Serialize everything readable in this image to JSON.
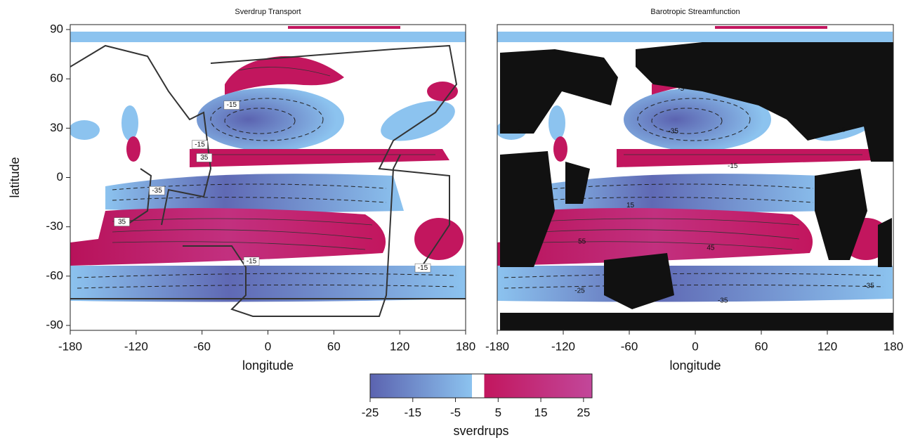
{
  "chart_data": [
    {
      "type": "contour",
      "title": "Sverdrup Transport",
      "xlabel": "longitude",
      "ylabel": "latitude",
      "xlim": [
        -180,
        180
      ],
      "ylim": [
        -93,
        93
      ],
      "xticks": [
        -180,
        -120,
        -60,
        0,
        60,
        120,
        180
      ],
      "yticks": [
        -90,
        -60,
        -30,
        0,
        30,
        60,
        90
      ],
      "annotations": [
        {
          "text": "-15",
          "x": -33,
          "y": 44
        },
        {
          "text": "-15",
          "x": -62,
          "y": 20
        },
        {
          "text": "35",
          "x": -58,
          "y": 12
        },
        {
          "text": "-35",
          "x": -101,
          "y": -8
        },
        {
          "text": "35",
          "x": -133,
          "y": -27
        },
        {
          "text": "-15",
          "x": -15,
          "y": -51
        },
        {
          "text": "-15",
          "x": 141,
          "y": -55
        }
      ],
      "label_box": true
    },
    {
      "type": "contour",
      "title": "Barotropic Streamfunction",
      "xlabel": "longitude",
      "xlim": [
        -180,
        180
      ],
      "ylim": [
        -93,
        93
      ],
      "xticks": [
        -180,
        -120,
        -60,
        0,
        60,
        120,
        180
      ],
      "annotations": [
        {
          "text": "-5",
          "x": -13,
          "y": 54
        },
        {
          "text": "-35",
          "x": -20,
          "y": 28
        },
        {
          "text": "-5",
          "x": -161,
          "y": 28
        },
        {
          "text": "15",
          "x": 133,
          "y": 29
        },
        {
          "text": "-15",
          "x": 34,
          "y": 7
        },
        {
          "text": "15",
          "x": -59,
          "y": -17
        },
        {
          "text": "55",
          "x": -103,
          "y": -39
        },
        {
          "text": "45",
          "x": 14,
          "y": -43
        },
        {
          "text": "-25",
          "x": -105,
          "y": -69
        },
        {
          "text": "-35",
          "x": 25,
          "y": -75
        },
        {
          "text": "-35",
          "x": 158,
          "y": -66
        }
      ],
      "label_box": false
    }
  ],
  "colorbar": {
    "label": "sverdrups",
    "lim": [
      -25,
      27
    ],
    "ticks": [
      -25,
      -15,
      -5,
      5,
      15,
      25
    ],
    "stops": [
      {
        "value": -25,
        "color": "#5b63b0"
      },
      {
        "value": -1.1,
        "color": "#8cc3ef"
      },
      {
        "value": -1.1,
        "color": "#ffffff"
      },
      {
        "value": 1.7,
        "color": "#ffffff"
      },
      {
        "value": 1.7,
        "color": "#c2165e"
      },
      {
        "value": 27,
        "color": "#c2479a"
      }
    ]
  }
}
